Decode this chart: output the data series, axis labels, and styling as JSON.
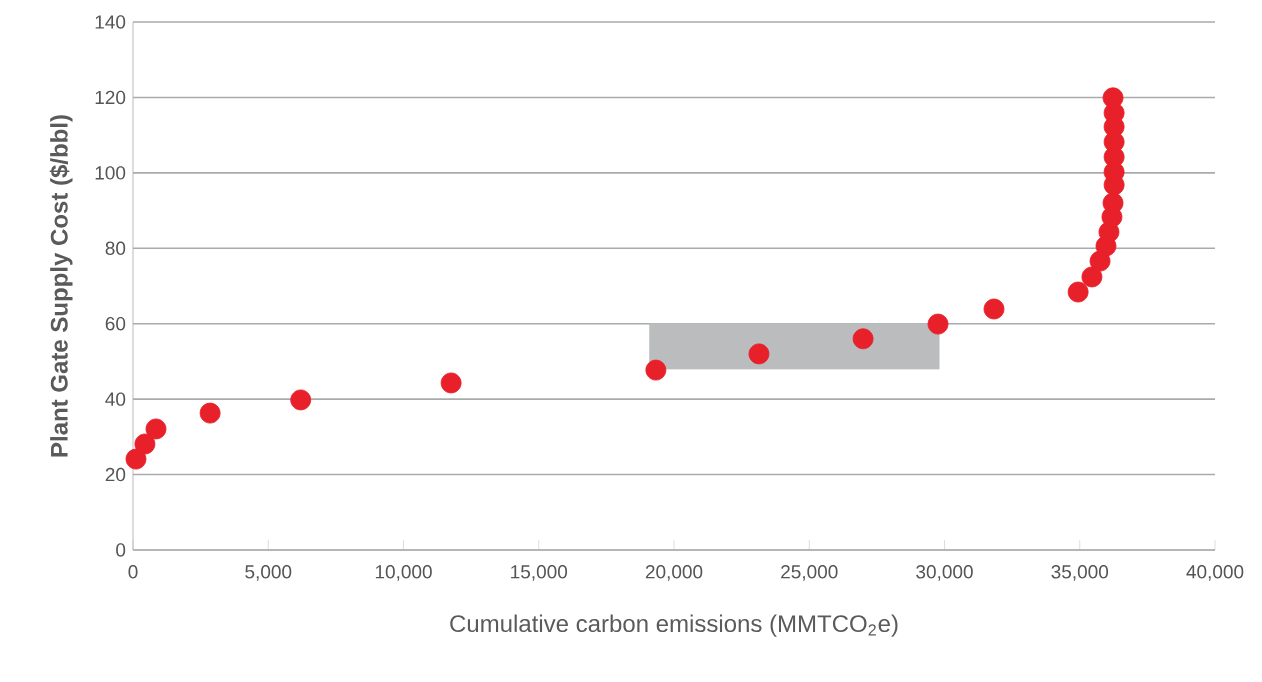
{
  "chart_data": {
    "type": "scatter",
    "xlabel": "Cumulative carbon emissions (MMTCO$_{2}$e)",
    "ylabel": "Plant Gate Supply Cost ($/bbl)",
    "xlim": [
      0,
      40000
    ],
    "ylim": [
      0,
      140
    ],
    "xticks": [
      {
        "value": 0,
        "label": "0"
      },
      {
        "value": 5000,
        "label": "5,000"
      },
      {
        "value": 10000,
        "label": "10,000"
      },
      {
        "value": 15000,
        "label": "15,000"
      },
      {
        "value": 20000,
        "label": "20,000"
      },
      {
        "value": 25000,
        "label": "25,000"
      },
      {
        "value": 30000,
        "label": "30,000"
      },
      {
        "value": 35000,
        "label": "35,000"
      },
      {
        "value": 40000,
        "label": "40,000"
      }
    ],
    "yticks": [
      0,
      20,
      40,
      60,
      80,
      100,
      120,
      140
    ],
    "grid": "y",
    "x": [
      110,
      440,
      850,
      2850,
      6200,
      11760,
      19330,
      23140,
      26990,
      29760,
      31830,
      34940,
      35450,
      35750,
      35970,
      36080,
      36190,
      36230,
      36270,
      36270,
      36270,
      36270,
      36270,
      36270,
      36230
    ],
    "series": [
      {
        "type": "area",
        "color": "#bbbcbe",
        "x": [
          19100,
          29800
        ],
        "values": [
          null,
          null
        ],
        "lower": [
          48,
          48
        ],
        "upper": [
          60,
          60
        ]
      },
      {
        "color": "#e8202a",
        "marker": "circle",
        "values": [
          24.1,
          28.1,
          32.1,
          36.3,
          39.8,
          44.3,
          47.7,
          52.0,
          56.0,
          59.9,
          63.9,
          68.4,
          72.4,
          76.6,
          80.6,
          84.3,
          88.3,
          92.0,
          96.8,
          100.2,
          104.2,
          108.2,
          112.2,
          115.9,
          119.9
        ]
      }
    ]
  }
}
